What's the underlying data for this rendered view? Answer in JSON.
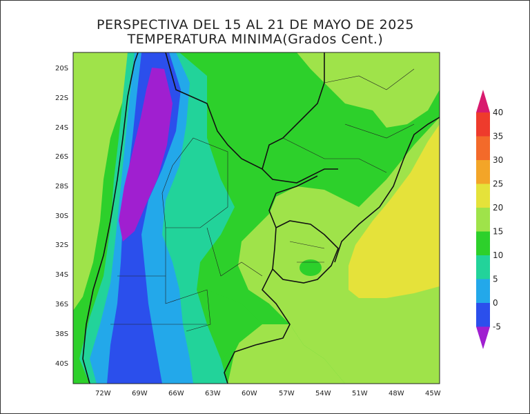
{
  "title": {
    "line1": "PERSPECTIVA DEL 15 AL 21 DE MAYO DE 2025",
    "line2": "TEMPERATURA MINIMA(Grados Cent.)"
  },
  "map": {
    "lat_labels": [
      "20S",
      "22S",
      "24S",
      "26S",
      "28S",
      "30S",
      "32S",
      "34S",
      "36S",
      "38S",
      "40S"
    ],
    "lon_labels": [
      "72W",
      "69W",
      "66W",
      "63W",
      "60W",
      "57W",
      "54W",
      "51W",
      "48W",
      "45W"
    ]
  },
  "colorbar": {
    "labels": [
      "40",
      "35",
      "30",
      "25",
      "20",
      "15",
      "10",
      "5",
      "0",
      "-5"
    ],
    "colors": {
      "above_40": "#d81a6e",
      "35_40": "#ee3b2c",
      "30_35": "#f36a2a",
      "25_30": "#f3a528",
      "20_25": "#e5e23a",
      "15_20": "#9fe34a",
      "10_15": "#2dd02b",
      "5_10": "#22d39a",
      "0_5": "#23a8ea",
      "m5_0": "#2b4fec",
      "below_m5": "#a01fd0"
    }
  }
}
